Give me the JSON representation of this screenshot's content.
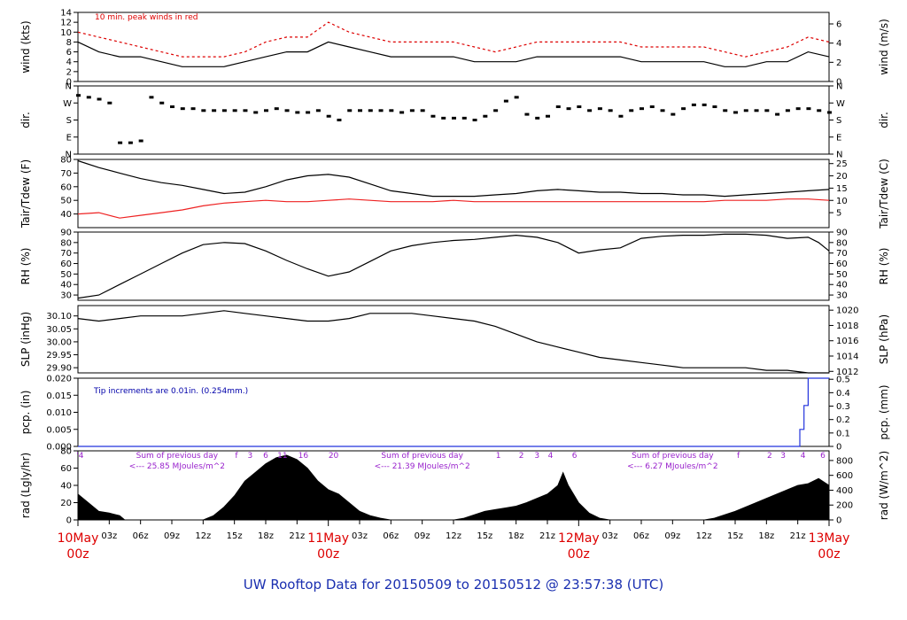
{
  "title": "UW Rooftop Data for 20150509  to  20150512 @ 23:57:38  (UTC)",
  "colors": {
    "data": "#000000",
    "peak": "#dd0000",
    "dew": "#ee2222",
    "precip": "#2233dd",
    "note_blue": "#0000aa",
    "note_purple": "#9922cc",
    "date": "#dd0000",
    "title": "#1a2fb0"
  },
  "x_axis": {
    "hours_total": 72,
    "hour_labels": [
      "03z",
      "06z",
      "09z",
      "12z",
      "15z",
      "18z",
      "21z",
      "03z",
      "06z",
      "09z",
      "12z",
      "15z",
      "18z",
      "21z",
      "03z",
      "06z",
      "09z",
      "12z",
      "15z",
      "18z",
      "21z"
    ],
    "hour_positions": [
      3,
      6,
      9,
      12,
      15,
      18,
      21,
      27,
      30,
      33,
      36,
      39,
      42,
      45,
      51,
      54,
      57,
      60,
      63,
      66,
      69
    ],
    "date_labels": [
      {
        "date": "10May",
        "hour": "00z",
        "at": 0
      },
      {
        "date": "11May",
        "hour": "00z",
        "at": 24
      },
      {
        "date": "12May",
        "hour": "00z",
        "at": 48
      },
      {
        "date": "13May",
        "hour": "00z",
        "at": 72
      }
    ]
  },
  "chart_data": [
    {
      "type": "line",
      "id": "wind",
      "ylabel_left": "wind (kts)",
      "ylabel_right": "wind (m/s)",
      "ylim_left": [
        0,
        14
      ],
      "yticks_left": [
        "0",
        "2",
        "4",
        "6",
        "8",
        "10",
        "12",
        "14"
      ],
      "ylim_right": [
        0,
        7.2
      ],
      "yticks_right": [
        "0",
        "2",
        "4",
        "6"
      ],
      "annotation": "10 min. peak winds in red",
      "series": [
        {
          "x": [
            0,
            2,
            4,
            6,
            8,
            10,
            12,
            14,
            16,
            18,
            20,
            22,
            24,
            26,
            28,
            30,
            32,
            34,
            36,
            38,
            40,
            42,
            44,
            46,
            48,
            50,
            52,
            54,
            56,
            58,
            60,
            62,
            64,
            66,
            68,
            70,
            72
          ],
          "values": [
            8,
            6,
            5,
            5,
            4,
            3,
            3,
            3,
            4,
            5,
            6,
            6,
            8,
            7,
            6,
            5,
            5,
            5,
            5,
            4,
            4,
            4,
            5,
            5,
            5,
            5,
            5,
            4,
            4,
            4,
            4,
            3,
            3,
            4,
            4,
            6,
            5
          ]
        },
        {
          "x": [
            0,
            2,
            4,
            6,
            8,
            10,
            12,
            14,
            16,
            18,
            20,
            22,
            24,
            26,
            28,
            30,
            32,
            34,
            36,
            38,
            40,
            42,
            44,
            46,
            48,
            50,
            52,
            54,
            56,
            58,
            60,
            62,
            64,
            66,
            68,
            70,
            72
          ],
          "values": [
            10,
            9,
            8,
            7,
            6,
            5,
            5,
            5,
            6,
            8,
            9,
            9,
            12,
            10,
            9,
            8,
            8,
            8,
            8,
            7,
            6,
            7,
            8,
            8,
            8,
            8,
            8,
            7,
            7,
            7,
            7,
            6,
            5,
            6,
            7,
            9,
            8
          ]
        }
      ]
    },
    {
      "type": "scatter",
      "id": "dir",
      "ylabel_left": "dir.",
      "ylabel_right": "dir.",
      "ylim": [
        0,
        360
      ],
      "yticks": [
        "N",
        "E",
        "S",
        "W",
        "N"
      ],
      "series": [
        {
          "x": [
            0,
            1,
            2,
            3,
            4,
            5,
            6,
            7,
            8,
            9,
            10,
            11,
            12,
            13,
            14,
            15,
            16,
            17,
            18,
            19,
            20,
            21,
            22,
            23,
            24,
            25,
            26,
            27,
            28,
            29,
            30,
            31,
            32,
            33,
            34,
            35,
            36,
            37,
            38,
            39,
            40,
            41,
            42,
            43,
            44,
            45,
            46,
            47,
            48,
            49,
            50,
            51,
            52,
            53,
            54,
            55,
            56,
            57,
            58,
            59,
            60,
            61,
            62,
            63,
            64,
            65,
            66,
            67,
            68,
            69,
            70,
            71,
            72
          ],
          "values": [
            310,
            300,
            290,
            270,
            60,
            60,
            70,
            300,
            270,
            250,
            240,
            240,
            230,
            230,
            230,
            230,
            230,
            220,
            230,
            240,
            230,
            220,
            220,
            230,
            200,
            180,
            230,
            230,
            230,
            230,
            230,
            220,
            230,
            230,
            200,
            190,
            190,
            190,
            180,
            200,
            230,
            280,
            300,
            210,
            190,
            200,
            250,
            240,
            250,
            230,
            240,
            230,
            200,
            230,
            240,
            250,
            230,
            210,
            240,
            260,
            260,
            250,
            230,
            220,
            230,
            230,
            230,
            210,
            230,
            240,
            240,
            230,
            220
          ]
        }
      ]
    },
    {
      "type": "line",
      "id": "temp",
      "ylabel_left": "Tair/Tdew (F)",
      "ylabel_right": "Tair/Tdew (C)",
      "ylim_left": [
        30,
        80
      ],
      "yticks_left": [
        "40",
        "50",
        "60",
        "70",
        "80"
      ],
      "ylim_right": [
        -1.1,
        26.7
      ],
      "yticks_right": [
        "5",
        "10",
        "15",
        "20",
        "25"
      ],
      "series": [
        {
          "name": "Tair",
          "x": [
            0,
            2,
            4,
            6,
            8,
            10,
            12,
            14,
            16,
            18,
            20,
            22,
            24,
            26,
            28,
            30,
            32,
            34,
            36,
            38,
            40,
            42,
            44,
            46,
            48,
            50,
            52,
            54,
            56,
            58,
            60,
            62,
            64,
            66,
            68,
            70,
            72
          ],
          "values": [
            79,
            74,
            70,
            66,
            63,
            61,
            58,
            55,
            56,
            60,
            65,
            68,
            69,
            67,
            62,
            57,
            55,
            53,
            53,
            53,
            54,
            55,
            57,
            58,
            57,
            56,
            56,
            55,
            55,
            54,
            54,
            53,
            54,
            55,
            56,
            57,
            58
          ]
        },
        {
          "name": "Tdew",
          "x": [
            0,
            2,
            4,
            6,
            8,
            10,
            12,
            14,
            16,
            18,
            20,
            22,
            24,
            26,
            28,
            30,
            32,
            34,
            36,
            38,
            40,
            42,
            44,
            46,
            48,
            50,
            52,
            54,
            56,
            58,
            60,
            62,
            64,
            66,
            68,
            70,
            72
          ],
          "values": [
            40,
            41,
            37,
            39,
            41,
            43,
            46,
            48,
            49,
            50,
            49,
            49,
            50,
            51,
            50,
            49,
            49,
            49,
            50,
            49,
            49,
            49,
            49,
            49,
            49,
            49,
            49,
            49,
            49,
            49,
            49,
            50,
            50,
            50,
            51,
            51,
            50
          ]
        }
      ]
    },
    {
      "type": "line",
      "id": "rh",
      "ylabel_left": "RH (%)",
      "ylabel_right": "RH (%)",
      "ylim": [
        25,
        90
      ],
      "yticks": [
        "30",
        "40",
        "50",
        "60",
        "70",
        "80",
        "90"
      ],
      "series": [
        {
          "x": [
            0,
            2,
            4,
            6,
            8,
            10,
            12,
            14,
            16,
            18,
            20,
            22,
            24,
            26,
            28,
            30,
            32,
            34,
            36,
            38,
            40,
            42,
            44,
            46,
            48,
            50,
            52,
            54,
            56,
            58,
            60,
            62,
            64,
            66,
            68,
            70,
            71,
            72
          ],
          "values": [
            27,
            30,
            40,
            50,
            60,
            70,
            78,
            80,
            79,
            72,
            63,
            55,
            48,
            52,
            62,
            72,
            77,
            80,
            82,
            83,
            85,
            87,
            85,
            80,
            70,
            73,
            75,
            84,
            86,
            87,
            87,
            88,
            88,
            87,
            84,
            85,
            80,
            72
          ]
        }
      ]
    },
    {
      "type": "line",
      "id": "slp",
      "ylabel_left": "SLP (inHg)",
      "ylabel_right": "SLP (hPa)",
      "ylim_left": [
        29.88,
        30.14
      ],
      "yticks_left": [
        "29.90",
        "29.95",
        "30.00",
        "30.05",
        "30.10"
      ],
      "ylim_right": [
        1011.8,
        1020.6
      ],
      "yticks_right": [
        "1012",
        "1014",
        "1016",
        "1018",
        "1020"
      ],
      "series": [
        {
          "x": [
            0,
            2,
            4,
            6,
            8,
            10,
            12,
            14,
            16,
            18,
            20,
            22,
            24,
            26,
            28,
            30,
            32,
            34,
            36,
            38,
            40,
            42,
            44,
            46,
            48,
            50,
            52,
            54,
            56,
            58,
            60,
            62,
            64,
            66,
            68,
            70,
            72
          ],
          "values": [
            30.09,
            30.08,
            30.09,
            30.1,
            30.1,
            30.1,
            30.11,
            30.12,
            30.11,
            30.1,
            30.09,
            30.08,
            30.08,
            30.09,
            30.11,
            30.11,
            30.11,
            30.1,
            30.09,
            30.08,
            30.06,
            30.03,
            30.0,
            29.98,
            29.96,
            29.94,
            29.93,
            29.92,
            29.91,
            29.9,
            29.9,
            29.9,
            29.9,
            29.89,
            29.89,
            29.88,
            29.88
          ]
        }
      ]
    },
    {
      "type": "line",
      "id": "pcp",
      "ylabel_left": "pcp. (in)",
      "ylabel_right": "pcp. (mm)",
      "ylim_left": [
        0,
        0.02
      ],
      "yticks_left": [
        "0.000",
        "0.005",
        "0.010",
        "0.015",
        "0.020"
      ],
      "ylim_right": [
        0,
        0.508
      ],
      "yticks_right": [
        "0",
        "0.1",
        "0.2",
        "0.3",
        "0.4",
        "0.5"
      ],
      "annotation": "Tip increments are 0.01in. (0.254mm.)",
      "series": [
        {
          "x": [
            0,
            69.2,
            69.2,
            69.6,
            69.6,
            70,
            70,
            72
          ],
          "values": [
            0,
            0,
            0.005,
            0.005,
            0.012,
            0.012,
            0.02,
            0.02
          ]
        }
      ]
    },
    {
      "type": "area",
      "id": "rad",
      "ylabel_left": "rad (Lgly/hr)",
      "ylabel_right": "rad (W/m^2)",
      "ylim_left": [
        0,
        80
      ],
      "yticks_left": [
        "0",
        "20",
        "40",
        "60",
        "80"
      ],
      "ylim_right": [
        0,
        930
      ],
      "yticks_right": [
        "0",
        "200",
        "400",
        "600",
        "800"
      ],
      "notes": [
        {
          "lines": [
            "Sum of previous day",
            "<--- 25.85 MJoules/m^2"
          ],
          "at": 9.5
        },
        {
          "lines": [
            "Sum of previous day",
            "<--- 21.39 MJoules/m^2"
          ],
          "at": 33
        },
        {
          "lines": [
            "Sum of previous day",
            "<--- 6.27 MJoules/m^2"
          ],
          "at": 57
        }
      ],
      "hour_marks": [
        {
          "t": "'4",
          "at": 0.2
        },
        {
          "t": "f",
          "at": 15.2
        },
        {
          "t": "3",
          "at": 16.5
        },
        {
          "t": "6",
          "at": 18
        },
        {
          "t": "11",
          "at": 19.6
        },
        {
          "t": "16",
          "at": 21.6
        },
        {
          "t": "20",
          "at": 24.5
        },
        {
          "t": "1",
          "at": 40.3
        },
        {
          "t": "2",
          "at": 42.5
        },
        {
          "t": "3",
          "at": 44
        },
        {
          "t": "4",
          "at": 45.3
        },
        {
          "t": "6",
          "at": 47.6
        },
        {
          "t": "f",
          "at": 63.3
        },
        {
          "t": "2",
          "at": 66.3
        },
        {
          "t": "3",
          "at": 67.6
        },
        {
          "t": "4",
          "at": 69.5
        },
        {
          "t": "6",
          "at": 71.4
        }
      ],
      "series": [
        {
          "x": [
            0,
            1,
            2,
            3,
            4,
            4.5,
            12,
            13,
            14,
            15,
            16,
            17,
            18,
            19,
            20,
            21,
            22,
            23,
            24,
            25,
            26,
            27,
            28,
            29,
            30,
            36,
            37,
            38,
            39,
            40,
            41,
            42,
            43,
            44,
            45,
            46,
            46.5,
            47,
            48,
            49,
            50,
            51,
            52,
            53,
            54,
            60,
            61,
            62,
            63,
            64,
            65,
            66,
            67,
            68,
            69,
            70,
            71,
            72
          ],
          "values": [
            30,
            20,
            10,
            8,
            5,
            0,
            0,
            5,
            15,
            28,
            45,
            55,
            65,
            72,
            75,
            70,
            60,
            45,
            35,
            30,
            20,
            10,
            5,
            2,
            0,
            0,
            2,
            6,
            10,
            12,
            14,
            16,
            20,
            25,
            30,
            40,
            55,
            40,
            20,
            8,
            2,
            0,
            0,
            0,
            0,
            0,
            2,
            6,
            10,
            15,
            20,
            25,
            30,
            35,
            40,
            42,
            48,
            40
          ]
        }
      ]
    }
  ]
}
